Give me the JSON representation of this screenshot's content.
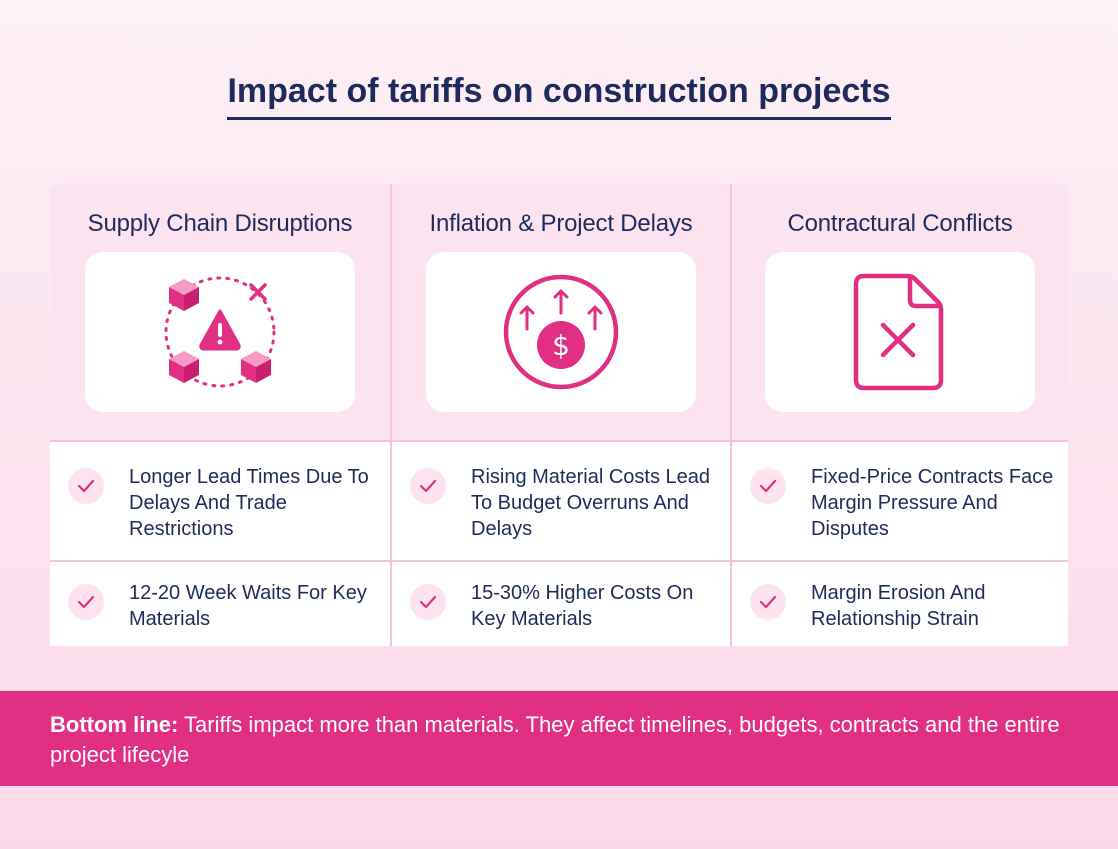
{
  "title": "Impact of tariffs on construction projects",
  "accent_color": "#e12f83",
  "columns": [
    {
      "heading": "Supply Chain Disruptions",
      "icon": "supply-chain-warning-icon",
      "points": [
        "Longer Lead Times Due To Delays And Trade Restrictions",
        "12-20 Week Waits For Key Materials"
      ]
    },
    {
      "heading": "Inflation & Project Delays",
      "icon": "rising-dollar-icon",
      "points": [
        "Rising Material Costs Lead To Budget Overruns And Delays",
        "15-30% Higher Costs On Key Materials"
      ]
    },
    {
      "heading": "Contractural Conflicts",
      "icon": "cancelled-document-icon",
      "points": [
        "Fixed-Price Contracts Face Margin Pressure And Disputes",
        "Margin Erosion And Relationship Strain"
      ]
    }
  ],
  "bottom_line": {
    "label": "Bottom line:",
    "text": " Tariffs impact more than materials. They affect timelines, budgets, contracts and the entire project lifecyle"
  }
}
